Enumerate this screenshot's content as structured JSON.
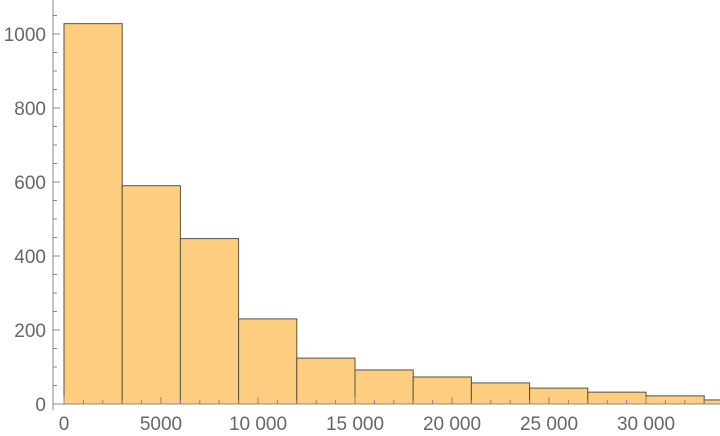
{
  "chart_data": {
    "type": "bar",
    "title": "",
    "xlabel": "",
    "ylabel": "",
    "bin_width": 3000,
    "bins": [
      {
        "start": 0,
        "end": 3000,
        "count": 1028
      },
      {
        "start": 3000,
        "end": 6000,
        "count": 590
      },
      {
        "start": 6000,
        "end": 9000,
        "count": 447
      },
      {
        "start": 9000,
        "end": 12000,
        "count": 230
      },
      {
        "start": 12000,
        "end": 15000,
        "count": 124
      },
      {
        "start": 15000,
        "end": 18000,
        "count": 92
      },
      {
        "start": 18000,
        "end": 21000,
        "count": 73
      },
      {
        "start": 21000,
        "end": 24000,
        "count": 57
      },
      {
        "start": 24000,
        "end": 27000,
        "count": 43
      },
      {
        "start": 27000,
        "end": 30000,
        "count": 32
      },
      {
        "start": 30000,
        "end": 33000,
        "count": 22
      },
      {
        "start": 33000,
        "end": 36000,
        "count": 11
      }
    ],
    "xlim": [
      -550,
      33800
    ],
    "ylim": [
      0,
      1085
    ],
    "x_ticks": [
      {
        "v": 0,
        "label": "0"
      },
      {
        "v": 5000,
        "label": "5000"
      },
      {
        "v": 10000,
        "label": "10 000"
      },
      {
        "v": 15000,
        "label": "15 000"
      },
      {
        "v": 20000,
        "label": "20 000"
      },
      {
        "v": 25000,
        "label": "25 000"
      },
      {
        "v": 30000,
        "label": "30 000"
      }
    ],
    "y_ticks": [
      {
        "v": 0,
        "label": "0"
      },
      {
        "v": 200,
        "label": "200"
      },
      {
        "v": 400,
        "label": "400"
      },
      {
        "v": 600,
        "label": "600"
      },
      {
        "v": 800,
        "label": "800"
      },
      {
        "v": 1000,
        "label": "1000"
      }
    ],
    "grid": false,
    "colors": {
      "bar_fill": "#fdce7f",
      "bar_stroke": "#5a5040",
      "axis": "#888888"
    }
  }
}
